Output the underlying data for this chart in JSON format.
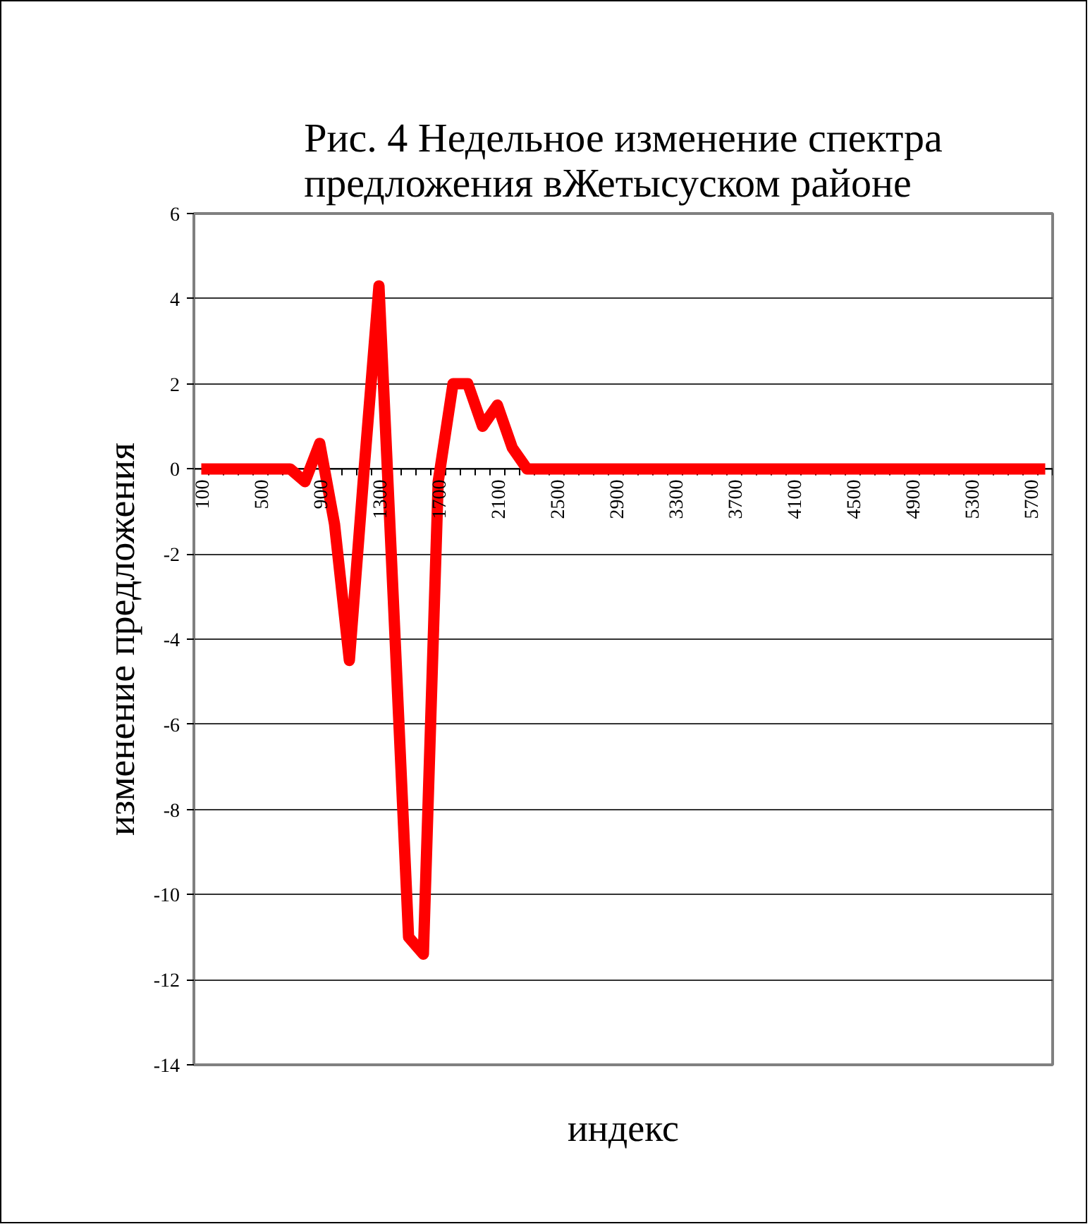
{
  "chart_data": {
    "type": "line",
    "title": "Рис. 4 Недельное изменение спектра\nпредложения вЖетысуском районе",
    "xlabel": "индекс",
    "ylabel": "изменение предложения",
    "categories": [
      "100",
      null,
      null,
      null,
      "500",
      null,
      null,
      null,
      "900",
      null,
      null,
      null,
      "1300",
      null,
      null,
      null,
      "1700",
      null,
      null,
      null,
      "2100",
      null,
      null,
      null,
      "2500",
      null,
      null,
      null,
      "2900",
      null,
      null,
      null,
      "3300",
      null,
      null,
      null,
      "3700",
      null,
      null,
      null,
      "4100",
      null,
      null,
      null,
      "4500",
      null,
      null,
      null,
      "4900",
      null,
      null,
      null,
      "5300",
      null,
      null,
      null,
      "5700",
      null
    ],
    "series": [
      {
        "color": "#ff0000",
        "values": [
          0,
          0,
          0,
          0,
          0,
          0,
          0,
          -0.3,
          0.6,
          -1.3,
          -4.5,
          0,
          4.3,
          -3.3,
          -11,
          -11.4,
          -0.3,
          2,
          2,
          1,
          1.5,
          0.5,
          0,
          0,
          0,
          0,
          0,
          0,
          0,
          0,
          0,
          0,
          0,
          0,
          0,
          0,
          0,
          0,
          0,
          0,
          0,
          0,
          0,
          0,
          0,
          0,
          0,
          0,
          0,
          0,
          0,
          0,
          0,
          0,
          0,
          0,
          0,
          0
        ]
      }
    ],
    "ylim": [
      -14,
      6
    ],
    "yticks": [
      -14,
      -12,
      -10,
      -8,
      -6,
      -4,
      -2,
      0,
      2,
      4,
      6
    ],
    "grid": "y"
  }
}
